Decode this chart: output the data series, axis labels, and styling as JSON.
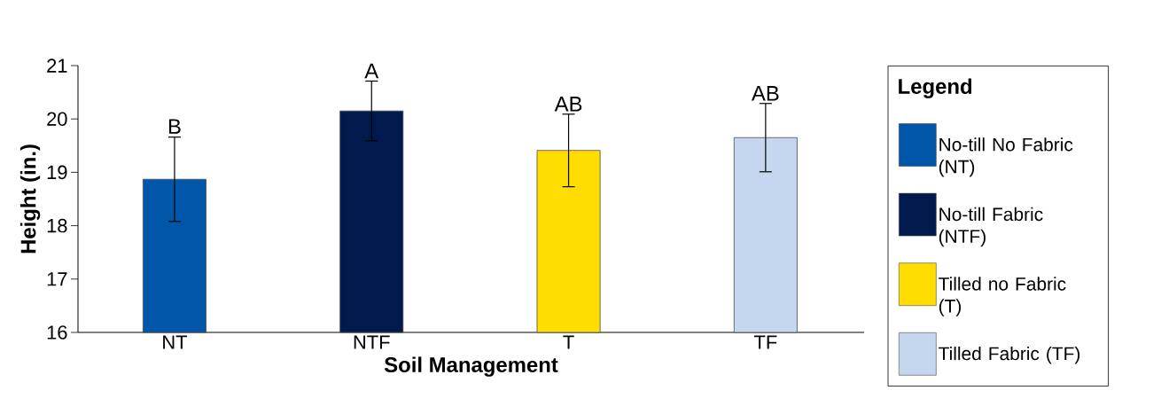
{
  "chart_data": {
    "type": "bar",
    "xlabel": "Soil Management",
    "ylabel": "Height (in.)",
    "legend_title": "Legend",
    "categories": [
      "NT",
      "NTF",
      "T",
      "TF"
    ],
    "series": [
      {
        "name": "No-till No Fabric (NT)",
        "color": "#0056a8",
        "values": [
          18.87,
          null,
          null,
          null
        ],
        "errors": [
          0.79,
          null,
          null,
          null
        ]
      },
      {
        "name": "No-till Fabric (NTF)",
        "color": "#001a4d",
        "values": [
          null,
          20.15,
          null,
          null
        ],
        "errors": [
          null,
          0.56,
          null,
          null
        ]
      },
      {
        "name": "Tilled no Fabric (T)",
        "color": "#ffdd00",
        "values": [
          null,
          null,
          19.41,
          null
        ],
        "errors": [
          null,
          null,
          0.68,
          null
        ]
      },
      {
        "name": "Tilled Fabric (TF)",
        "color": "#c5d7ee",
        "values": [
          null,
          null,
          null,
          19.65
        ],
        "errors": [
          null,
          null,
          null,
          0.64
        ]
      }
    ],
    "ylim": [
      16,
      21
    ],
    "yticks": [
      16,
      17,
      18,
      19,
      20,
      21
    ],
    "legend": "right",
    "annotations": [
      {
        "text": "B",
        "x": "NT",
        "y": 19.67
      },
      {
        "text": "A",
        "x": "NTF",
        "y": 20.71
      },
      {
        "text": "AB",
        "x": "T",
        "y": 20.09
      },
      {
        "text": "AB",
        "x": "TF",
        "y": 20.29
      }
    ]
  }
}
